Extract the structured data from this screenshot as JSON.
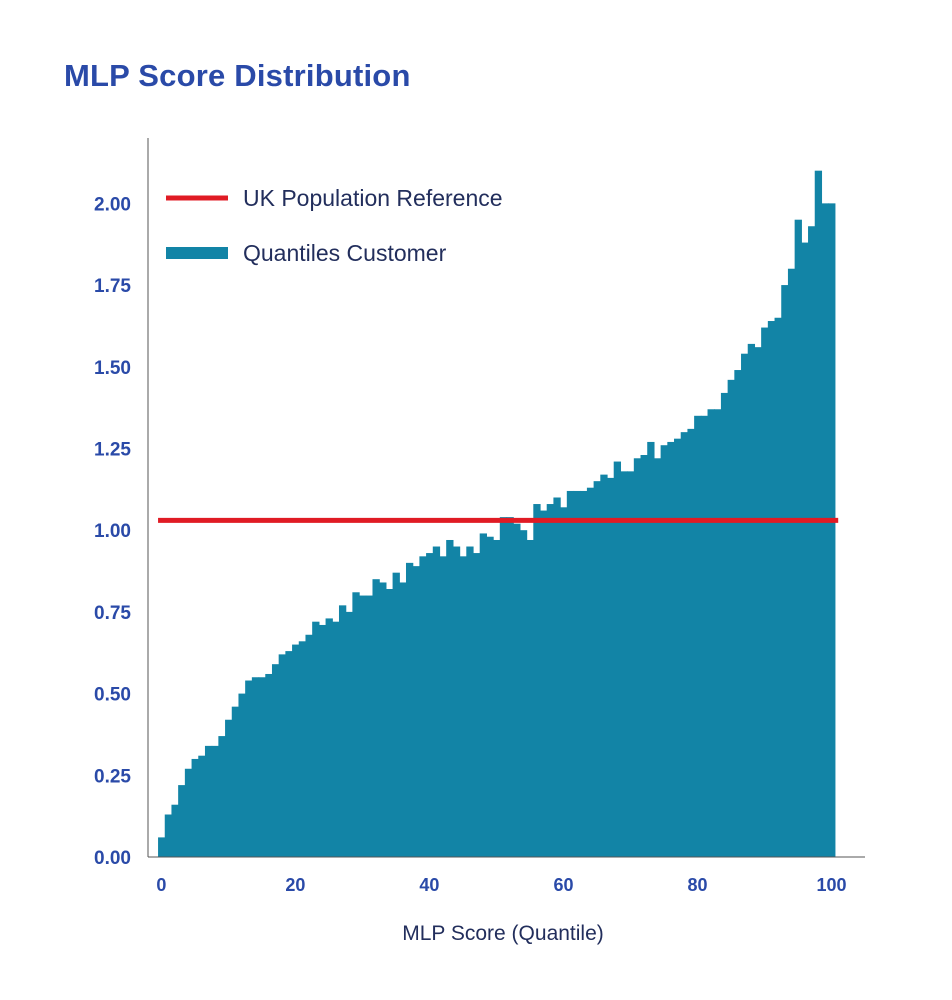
{
  "chart_data": {
    "type": "bar",
    "title": "MLP Score Distribution",
    "xlabel": "MLP Score (Quantile)",
    "ylabel": "",
    "xlim": [
      -2,
      105
    ],
    "ylim": [
      0,
      2.2
    ],
    "x_ticks": [
      {
        "value": 0,
        "label": "0"
      },
      {
        "value": 20,
        "label": "20"
      },
      {
        "value": 40,
        "label": "40"
      },
      {
        "value": 60,
        "label": "60"
      },
      {
        "value": 80,
        "label": "80"
      },
      {
        "value": 100,
        "label": "100"
      }
    ],
    "y_ticks": [
      {
        "value": 0,
        "label": "0.00"
      },
      {
        "value": 0.25,
        "label": "0.25"
      },
      {
        "value": 0.5,
        "label": "0.50"
      },
      {
        "value": 0.75,
        "label": "0.75"
      },
      {
        "value": 1.0,
        "label": "1.00"
      },
      {
        "value": 1.25,
        "label": "1.25"
      },
      {
        "value": 1.5,
        "label": "1.50"
      },
      {
        "value": 1.75,
        "label": "1.75"
      },
      {
        "value": 2.0,
        "label": "2.00"
      }
    ],
    "series": [
      {
        "name": "Quantiles Customer",
        "kind": "bar",
        "color": "#1284a6",
        "x": [
          0,
          1,
          2,
          3,
          4,
          5,
          6,
          7,
          8,
          9,
          10,
          11,
          12,
          13,
          14,
          15,
          16,
          17,
          18,
          19,
          20,
          21,
          22,
          23,
          24,
          25,
          26,
          27,
          28,
          29,
          30,
          31,
          32,
          33,
          34,
          35,
          36,
          37,
          38,
          39,
          40,
          41,
          42,
          43,
          44,
          45,
          46,
          47,
          48,
          49,
          50,
          51,
          52,
          53,
          54,
          55,
          56,
          57,
          58,
          59,
          60,
          61,
          62,
          63,
          64,
          65,
          66,
          67,
          68,
          69,
          70,
          71,
          72,
          73,
          74,
          75,
          76,
          77,
          78,
          79,
          80,
          81,
          82,
          83,
          84,
          85,
          86,
          87,
          88,
          89,
          90,
          91,
          92,
          93,
          94,
          95,
          96,
          97,
          98,
          99,
          100
        ],
        "values": [
          0.06,
          0.13,
          0.16,
          0.22,
          0.27,
          0.3,
          0.31,
          0.34,
          0.34,
          0.37,
          0.42,
          0.46,
          0.5,
          0.54,
          0.55,
          0.55,
          0.56,
          0.59,
          0.62,
          0.63,
          0.65,
          0.66,
          0.68,
          0.72,
          0.71,
          0.73,
          0.72,
          0.77,
          0.75,
          0.81,
          0.8,
          0.8,
          0.85,
          0.84,
          0.82,
          0.87,
          0.84,
          0.9,
          0.89,
          0.92,
          0.93,
          0.95,
          0.92,
          0.97,
          0.95,
          0.92,
          0.95,
          0.93,
          0.99,
          0.98,
          0.97,
          1.04,
          1.04,
          1.02,
          1.0,
          0.97,
          1.08,
          1.06,
          1.08,
          1.1,
          1.07,
          1.12,
          1.12,
          1.12,
          1.13,
          1.15,
          1.17,
          1.16,
          1.21,
          1.18,
          1.18,
          1.22,
          1.23,
          1.27,
          1.22,
          1.26,
          1.27,
          1.28,
          1.3,
          1.31,
          1.35,
          1.35,
          1.37,
          1.37,
          1.42,
          1.46,
          1.49,
          1.54,
          1.57,
          1.56,
          1.62,
          1.64,
          1.65,
          1.75,
          1.8,
          1.95,
          1.88,
          1.93,
          2.1,
          2.0,
          2.0
        ]
      },
      {
        "name": "UK Population Reference",
        "kind": "hline",
        "color": "#e01b24",
        "value": 1.03,
        "x_range": [
          -0.5,
          101
        ]
      }
    ],
    "legend": {
      "position": "top-left",
      "entries": [
        {
          "label": "UK Population Reference",
          "color": "#e01b24",
          "marker": "line"
        },
        {
          "label": "Quantiles Customer",
          "color": "#1284a6",
          "marker": "bar"
        }
      ]
    }
  }
}
